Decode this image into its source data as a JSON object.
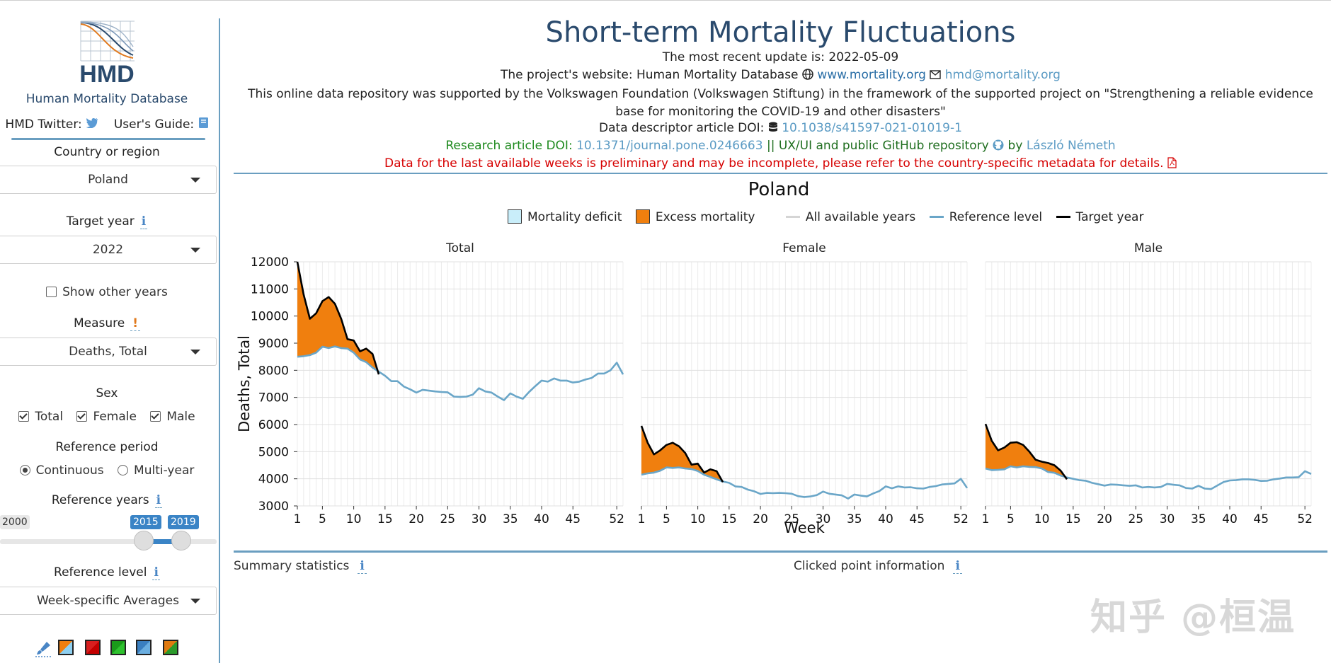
{
  "sidebar": {
    "logo_text": "HMD",
    "site_name": "Human Mortality Database",
    "twitter_label": "HMD Twitter:",
    "guide_label": "User's Guide:",
    "country_label": "Country or region",
    "country_value": "Poland",
    "target_year_label": "Target year",
    "target_year_value": "2022",
    "show_other_years": "Show other years",
    "measure_label": "Measure",
    "measure_value": "Deaths, Total",
    "sex_label": "Sex",
    "sex_total": "Total",
    "sex_female": "Female",
    "sex_male": "Male",
    "ref_period_label": "Reference period",
    "ref_continuous": "Continuous",
    "ref_multiyear": "Multi-year",
    "ref_years_label": "Reference years",
    "slider_min": "2000",
    "slider_from": "2015",
    "slider_to": "2019",
    "ref_level_label": "Reference level",
    "ref_level_value": "Week-specific Averages"
  },
  "header": {
    "title": "Short-term Mortality Fluctuations",
    "update": "The most recent update is: 2022-05-09",
    "website_prefix": "The project's website: Human Mortality Database",
    "website_link": "www.mortality.org",
    "email_link": "hmd@mortality.org",
    "support_text": "This online data repository was supported by the Volkswagen Foundation (Volkswagen Stiftung) in the framework of the supported project on \"Strengthening a reliable evidence base for monitoring the COVID-19 and other disasters\"",
    "descriptor_label": "Data descriptor article DOI:",
    "descriptor_doi": "10.1038/s41597-021-01019-1",
    "research_label": "Research article DOI:",
    "research_doi": "10.1371/journal.pone.0246663",
    "repo_text": "|| UX/UI and public GitHub repository",
    "by_text": "by",
    "author": "László Németh",
    "warning": "Data for the last available weeks is preliminary and may be incomplete, please refer to the country-specific metadata for details."
  },
  "legend": {
    "deficit": "Mortality deficit",
    "excess": "Excess mortality",
    "all_years": "All available years",
    "reference": "Reference level",
    "target": "Target year"
  },
  "colors": {
    "deficit": "#c9eefa",
    "excess": "#f07f0e",
    "reference": "#6aa6c8",
    "target": "#000000",
    "all_years": "#d5d5d5"
  },
  "bottom": {
    "summary": "Summary statistics",
    "clicked": "Clicked point information"
  },
  "watermark": "知乎 @桓温",
  "chart_data": {
    "type": "area",
    "title": "Poland",
    "xlabel": "Week",
    "ylabel": "Deaths, Total",
    "ylim": [
      3000,
      12000
    ],
    "yticks": [
      3000,
      4000,
      5000,
      6000,
      7000,
      8000,
      9000,
      10000,
      11000,
      12000
    ],
    "xticks": [
      1,
      5,
      10,
      15,
      20,
      25,
      30,
      35,
      40,
      45,
      52
    ],
    "weeks": [
      1,
      2,
      3,
      4,
      5,
      6,
      7,
      8,
      9,
      10,
      11,
      12,
      13,
      14,
      15,
      16,
      17,
      18,
      19,
      20,
      21,
      22,
      23,
      24,
      25,
      26,
      27,
      28,
      29,
      30,
      31,
      32,
      33,
      34,
      35,
      36,
      37,
      38,
      39,
      40,
      41,
      42,
      43,
      44,
      45,
      46,
      47,
      48,
      49,
      50,
      51,
      52,
      53
    ],
    "panels": [
      {
        "name": "Total",
        "reference": [
          8500,
          8520,
          8560,
          8650,
          8870,
          8820,
          8880,
          8820,
          8800,
          8650,
          8400,
          8300,
          8100,
          7950,
          7800,
          7600,
          7600,
          7400,
          7300,
          7180,
          7280,
          7250,
          7220,
          7200,
          7190,
          7030,
          7020,
          7030,
          7100,
          7340,
          7220,
          7180,
          7030,
          6900,
          7150,
          7030,
          6950,
          7200,
          7420,
          7620,
          7580,
          7700,
          7620,
          7620,
          7550,
          7580,
          7660,
          7720,
          7880,
          7880,
          8000,
          8280,
          7850
        ],
        "target": [
          12000,
          10800,
          9900,
          10100,
          10550,
          10700,
          10450,
          9900,
          9150,
          9100,
          8700,
          8800,
          8600,
          7850
        ]
      },
      {
        "name": "Female",
        "reference": [
          4150,
          4200,
          4230,
          4300,
          4420,
          4400,
          4420,
          4380,
          4360,
          4290,
          4150,
          4070,
          3980,
          3900,
          3850,
          3720,
          3700,
          3600,
          3540,
          3440,
          3480,
          3470,
          3480,
          3470,
          3450,
          3360,
          3330,
          3350,
          3400,
          3530,
          3450,
          3420,
          3390,
          3270,
          3420,
          3380,
          3350,
          3460,
          3550,
          3720,
          3650,
          3720,
          3680,
          3690,
          3650,
          3640,
          3700,
          3730,
          3790,
          3810,
          3830,
          4000,
          3660
        ],
        "target": [
          5950,
          5330,
          4900,
          5050,
          5250,
          5330,
          5200,
          4950,
          4520,
          4560,
          4230,
          4350,
          4280,
          3880
        ]
      },
      {
        "name": "Male",
        "reference": [
          4380,
          4320,
          4330,
          4350,
          4460,
          4420,
          4460,
          4440,
          4430,
          4380,
          4250,
          4220,
          4120,
          4050,
          4000,
          3950,
          3930,
          3850,
          3800,
          3750,
          3790,
          3780,
          3760,
          3740,
          3760,
          3680,
          3700,
          3680,
          3700,
          3810,
          3780,
          3760,
          3660,
          3640,
          3740,
          3640,
          3620,
          3750,
          3880,
          3940,
          3950,
          3980,
          3980,
          3960,
          3920,
          3930,
          3980,
          4010,
          4050,
          4050,
          4060,
          4280,
          4180
        ],
        "target": [
          6020,
          5400,
          5050,
          5150,
          5330,
          5350,
          5250,
          5000,
          4700,
          4630,
          4580,
          4500,
          4300,
          3980
        ]
      }
    ]
  }
}
